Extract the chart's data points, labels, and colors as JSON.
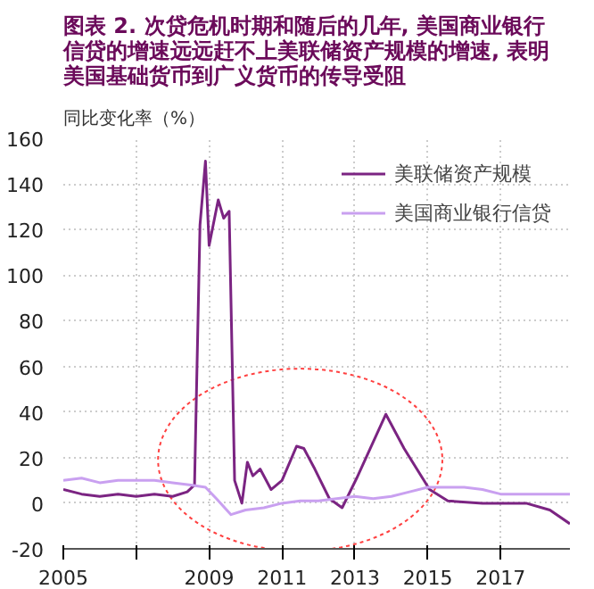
{
  "chart_data": {
    "type": "line",
    "title": "图表 2. 次贷危机时期和随后的几年, 美国商业银行信贷的增速远远赶不上美联储资产规模的增速, 表明美国基础货币到广义货币的传导受阻",
    "ylabel": "同比变化率（%）",
    "xlim": [
      2005,
      2018.9
    ],
    "xticks": [
      2005,
      {
        "value": 2007,
        "label": null
      },
      2009,
      2011,
      2013,
      2015,
      2017
    ],
    "ylim": [
      -20,
      160
    ],
    "yticks": [
      -20,
      0,
      20,
      40,
      60,
      80,
      100,
      120,
      140,
      160
    ],
    "grid": true,
    "legend": "top right",
    "line_style": "solid",
    "series": [
      {
        "name": "美联储资产规模",
        "color": "#7b2482",
        "x": [
          2005,
          2005.5,
          2006,
          2006.5,
          2007,
          2007.5,
          2008,
          2008.4,
          2008.6,
          2008.75,
          2008.9,
          2009.0,
          2009.25,
          2009.4,
          2009.55,
          2009.7,
          2009.9,
          2010.05,
          2010.2,
          2010.4,
          2010.7,
          2011.0,
          2011.4,
          2011.6,
          2011.9,
          2012.3,
          2012.65,
          2013.05,
          2013.85,
          2014.35,
          2015.05,
          2015.55,
          2016.5,
          2017.7,
          2018.35,
          2018.9
        ],
        "values": [
          6,
          4,
          3,
          4,
          3,
          4,
          3,
          5,
          8,
          122,
          150,
          113,
          133,
          125,
          128,
          10,
          0,
          18,
          12,
          15,
          6,
          10,
          25,
          24,
          15,
          2,
          -2,
          11,
          39,
          24,
          6,
          1,
          0,
          0,
          -3,
          -9
        ]
      },
      {
        "name": "美国商业银行信贷",
        "color": "#c9a0f0",
        "x": [
          2005,
          2005.5,
          2006,
          2006.5,
          2007,
          2007.5,
          2008,
          2008.5,
          2008.9,
          2009.2,
          2009.6,
          2010.0,
          2010.5,
          2011.0,
          2011.5,
          2012.0,
          2012.5,
          2013.0,
          2013.5,
          2014.0,
          2014.5,
          2015.0,
          2015.5,
          2016.0,
          2016.5,
          2017.0,
          2017.5,
          2018.0,
          2018.9
        ],
        "values": [
          10,
          11,
          9,
          10,
          10,
          10,
          9,
          8,
          7,
          2,
          -5,
          -3,
          -2,
          0,
          1,
          1,
          2,
          3,
          2,
          3,
          5,
          7,
          7,
          7,
          6,
          4,
          4,
          4,
          4
        ]
      }
    ]
  }
}
